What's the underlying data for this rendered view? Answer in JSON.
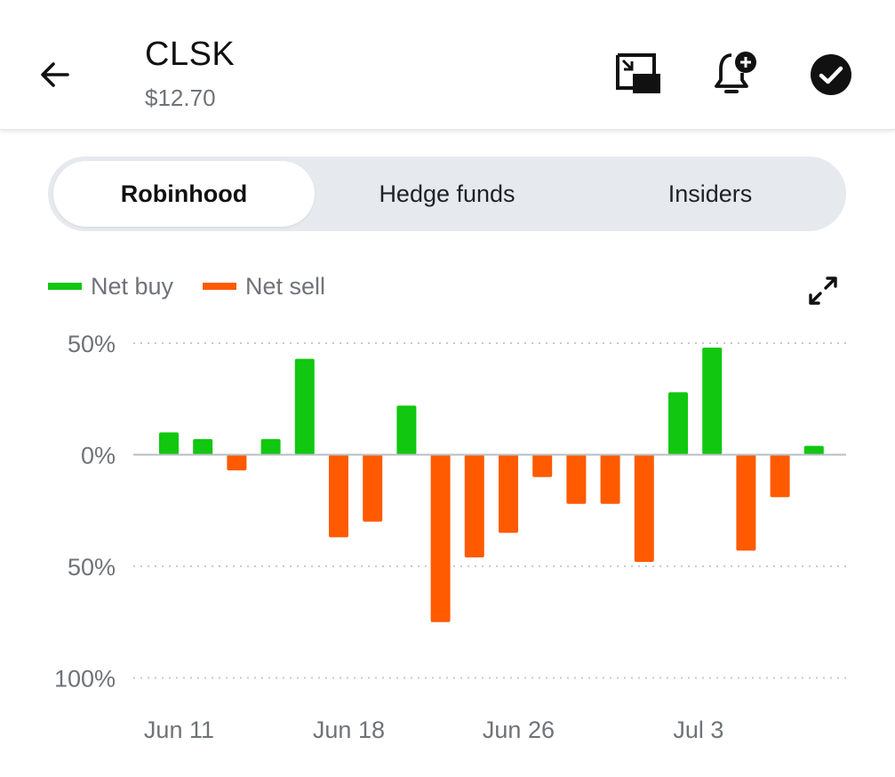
{
  "header": {
    "ticker": "CLSK",
    "price": "$12.70"
  },
  "icons": {
    "back": "arrow-left-icon",
    "pip": "picture-in-picture-icon",
    "alert": "bell-plus-icon",
    "watchlist": "check-circle-icon",
    "expand": "expand-arrows-icon"
  },
  "tabs": [
    {
      "label": "Robinhood",
      "active": true
    },
    {
      "label": "Hedge funds",
      "active": false
    },
    {
      "label": "Insiders",
      "active": false
    }
  ],
  "legend": {
    "buy_label": "Net buy",
    "sell_label": "Net sell"
  },
  "colors": {
    "buy": "#11c70f",
    "sell": "#ff5a00",
    "zero_line": "#b9bec4",
    "grid": "#c6cacf",
    "text_muted": "#6f7378"
  },
  "chart_data": {
    "type": "bar",
    "title": "",
    "xlabel": "",
    "ylabel": "",
    "ylim": [
      -100,
      50
    ],
    "yticks": [
      {
        "value": 50,
        "label": "50%"
      },
      {
        "value": 0,
        "label": "0%"
      },
      {
        "value": -50,
        "label": "50%"
      },
      {
        "value": -100,
        "label": "100%"
      }
    ],
    "x_tick_labels": [
      {
        "label": "Jun 11",
        "bar_index": 0.3
      },
      {
        "label": "Jun 18",
        "bar_index": 5.3
      },
      {
        "label": "Jun 26",
        "bar_index": 10.3
      },
      {
        "label": "Jul 3",
        "bar_index": 15.6
      }
    ],
    "grid": true,
    "legend_position": "top-left",
    "values": [
      10,
      7,
      -7,
      7,
      43,
      -37,
      -30,
      22,
      -75,
      -46,
      -35,
      -10,
      -22,
      -22,
      -48,
      28,
      48,
      -43,
      -19,
      4
    ]
  }
}
